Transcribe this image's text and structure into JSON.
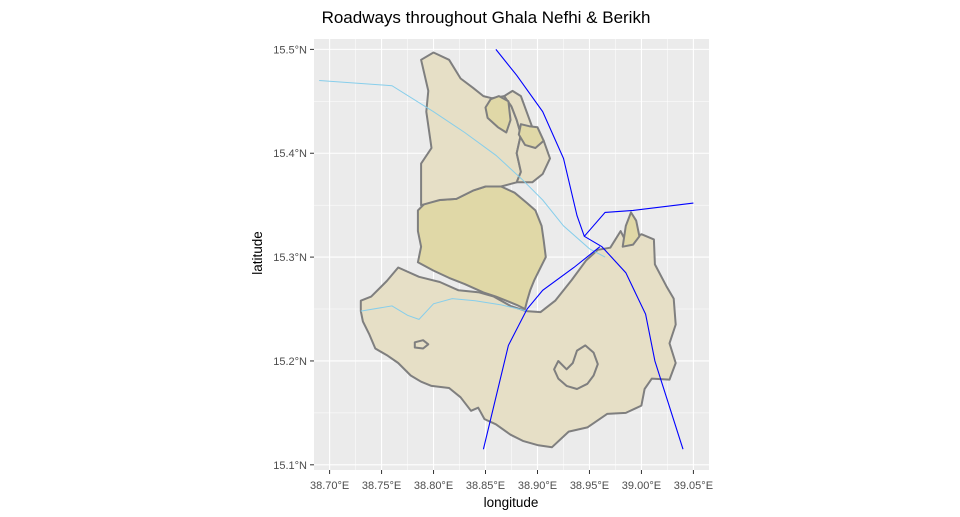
{
  "title": "Roadways throughout Ghala Nefhi & Berikh",
  "x_axis": {
    "label": "longitude",
    "ticks": [
      {
        "value": 38.7,
        "label": "38.70°E"
      },
      {
        "value": 38.75,
        "label": "38.75°E"
      },
      {
        "value": 38.8,
        "label": "38.80°E"
      },
      {
        "value": 38.85,
        "label": "38.85°E"
      },
      {
        "value": 38.9,
        "label": "38.90°E"
      },
      {
        "value": 38.95,
        "label": "38.95°E"
      },
      {
        "value": 39.0,
        "label": "39.00°E"
      },
      {
        "value": 39.05,
        "label": "39.05°E"
      }
    ]
  },
  "y_axis": {
    "label": "latitude",
    "ticks": [
      {
        "value": 15.1,
        "label": "15.1°N"
      },
      {
        "value": 15.2,
        "label": "15.2°N"
      },
      {
        "value": 15.3,
        "label": "15.3°N"
      },
      {
        "value": 15.4,
        "label": "15.4°N"
      },
      {
        "value": 15.5,
        "label": "15.5°N"
      }
    ]
  },
  "colors": {
    "panel": "#ebebeb",
    "grid": "#ffffff",
    "border": "#7f7f7f",
    "light_fill": "#e6dfc6",
    "dark_fill": "#e0d8a7",
    "road": "#0000ff",
    "river": "#87ceeb"
  },
  "map_data": {
    "extent": {
      "lon": [
        38.685,
        39.065
      ],
      "lat": [
        15.095,
        15.51
      ]
    },
    "regions": [
      {
        "name": "region-south-large",
        "fill": "light",
        "coords": [
          [
            38.73,
            15.248
          ],
          [
            38.73,
            15.258
          ],
          [
            38.74,
            15.262
          ],
          [
            38.755,
            15.277
          ],
          [
            38.766,
            15.29
          ],
          [
            38.786,
            15.281
          ],
          [
            38.806,
            15.276
          ],
          [
            38.824,
            15.268
          ],
          [
            38.844,
            15.266
          ],
          [
            38.858,
            15.262
          ],
          [
            38.874,
            15.253
          ],
          [
            38.889,
            15.248
          ],
          [
            38.903,
            15.247
          ],
          [
            38.917,
            15.258
          ],
          [
            38.933,
            15.278
          ],
          [
            38.947,
            15.297
          ],
          [
            38.958,
            15.307
          ],
          [
            38.97,
            15.309
          ],
          [
            38.98,
            15.325
          ],
          [
            38.986,
            15.313
          ],
          [
            39.0,
            15.322
          ],
          [
            39.012,
            15.317
          ],
          [
            39.013,
            15.293
          ],
          [
            39.024,
            15.272
          ],
          [
            39.031,
            15.26
          ],
          [
            39.033,
            15.235
          ],
          [
            39.027,
            15.217
          ],
          [
            39.033,
            15.198
          ],
          [
            39.027,
            15.182
          ],
          [
            39.01,
            15.183
          ],
          [
            39.003,
            15.173
          ],
          [
            39.0,
            15.157
          ],
          [
            38.985,
            15.15
          ],
          [
            38.967,
            15.149
          ],
          [
            38.948,
            15.136
          ],
          [
            38.93,
            15.132
          ],
          [
            38.914,
            15.117
          ],
          [
            38.9,
            15.119
          ],
          [
            38.886,
            15.123
          ],
          [
            38.874,
            15.129
          ],
          [
            38.86,
            15.139
          ],
          [
            38.849,
            15.144
          ],
          [
            38.843,
            15.155
          ],
          [
            38.836,
            15.152
          ],
          [
            38.826,
            15.165
          ],
          [
            38.815,
            15.174
          ],
          [
            38.798,
            15.176
          ],
          [
            38.788,
            15.18
          ],
          [
            38.778,
            15.186
          ],
          [
            38.766,
            15.198
          ],
          [
            38.756,
            15.205
          ],
          [
            38.744,
            15.212
          ],
          [
            38.738,
            15.226
          ],
          [
            38.732,
            15.238
          ]
        ]
      },
      {
        "name": "region-central-dark",
        "fill": "dark",
        "coords": [
          [
            38.785,
            15.295
          ],
          [
            38.8,
            15.287
          ],
          [
            38.815,
            15.28
          ],
          [
            38.83,
            15.274
          ],
          [
            38.848,
            15.266
          ],
          [
            38.86,
            15.262
          ],
          [
            38.87,
            15.258
          ],
          [
            38.88,
            15.254
          ],
          [
            38.888,
            15.25
          ],
          [
            38.89,
            15.258
          ],
          [
            38.893,
            15.268
          ],
          [
            38.897,
            15.278
          ],
          [
            38.904,
            15.292
          ],
          [
            38.908,
            15.3
          ],
          [
            38.906,
            15.316
          ],
          [
            38.904,
            15.33
          ],
          [
            38.898,
            15.345
          ],
          [
            38.89,
            15.352
          ],
          [
            38.878,
            15.362
          ],
          [
            38.865,
            15.368
          ],
          [
            38.85,
            15.368
          ],
          [
            38.838,
            15.364
          ],
          [
            38.822,
            15.356
          ],
          [
            38.806,
            15.355
          ],
          [
            38.792,
            15.352
          ],
          [
            38.785,
            15.345
          ],
          [
            38.785,
            15.325
          ],
          [
            38.788,
            15.31
          ]
        ]
      },
      {
        "name": "region-north-west",
        "fill": "light",
        "coords": [
          [
            38.788,
            15.35
          ],
          [
            38.788,
            15.39
          ],
          [
            38.798,
            15.405
          ],
          [
            38.793,
            15.44
          ],
          [
            38.795,
            15.46
          ],
          [
            38.788,
            15.49
          ],
          [
            38.8,
            15.497
          ],
          [
            38.815,
            15.49
          ],
          [
            38.826,
            15.472
          ],
          [
            38.838,
            15.463
          ],
          [
            38.848,
            15.455
          ],
          [
            38.856,
            15.453
          ],
          [
            38.868,
            15.455
          ],
          [
            38.875,
            15.445
          ],
          [
            38.88,
            15.432
          ],
          [
            38.884,
            15.418
          ],
          [
            38.88,
            15.4
          ],
          [
            38.884,
            15.382
          ],
          [
            38.88,
            15.372
          ],
          [
            38.865,
            15.368
          ],
          [
            38.85,
            15.368
          ],
          [
            38.838,
            15.364
          ],
          [
            38.822,
            15.356
          ],
          [
            38.806,
            15.355
          ]
        ]
      },
      {
        "name": "region-north-east",
        "fill": "light",
        "coords": [
          [
            38.88,
            15.372
          ],
          [
            38.884,
            15.382
          ],
          [
            38.88,
            15.4
          ],
          [
            38.884,
            15.418
          ],
          [
            38.88,
            15.432
          ],
          [
            38.875,
            15.445
          ],
          [
            38.868,
            15.455
          ],
          [
            38.876,
            15.46
          ],
          [
            38.884,
            15.455
          ],
          [
            38.895,
            15.425
          ],
          [
            38.906,
            15.412
          ],
          [
            38.912,
            15.395
          ],
          [
            38.905,
            15.38
          ],
          [
            38.895,
            15.372
          ]
        ]
      },
      {
        "name": "region-north-pocket-a",
        "fill": "dark",
        "coords": [
          [
            38.862,
            15.425
          ],
          [
            38.87,
            15.42
          ],
          [
            38.874,
            15.432
          ],
          [
            38.872,
            15.45
          ],
          [
            38.863,
            15.455
          ],
          [
            38.855,
            15.452
          ],
          [
            38.85,
            15.444
          ],
          [
            38.852,
            15.434
          ]
        ]
      },
      {
        "name": "region-north-pocket-b",
        "fill": "dark",
        "coords": [
          [
            38.884,
            15.428
          ],
          [
            38.892,
            15.426
          ],
          [
            38.9,
            15.425
          ],
          [
            38.906,
            15.412
          ],
          [
            38.898,
            15.405
          ],
          [
            38.888,
            15.408
          ],
          [
            38.882,
            15.418
          ]
        ]
      },
      {
        "name": "region-east-spike",
        "fill": "dark",
        "coords": [
          [
            38.982,
            15.31
          ],
          [
            38.985,
            15.33
          ],
          [
            38.99,
            15.343
          ],
          [
            38.995,
            15.335
          ],
          [
            38.998,
            15.32
          ],
          [
            38.992,
            15.312
          ]
        ]
      },
      {
        "name": "region-inner-hole",
        "fill": "light",
        "coords": [
          [
            38.92,
            15.2
          ],
          [
            38.928,
            15.192
          ],
          [
            38.934,
            15.198
          ],
          [
            38.938,
            15.21
          ],
          [
            38.946,
            15.215
          ],
          [
            38.954,
            15.208
          ],
          [
            38.958,
            15.197
          ],
          [
            38.954,
            15.186
          ],
          [
            38.948,
            15.178
          ],
          [
            38.938,
            15.173
          ],
          [
            38.928,
            15.176
          ],
          [
            38.92,
            15.183
          ],
          [
            38.916,
            15.192
          ]
        ]
      },
      {
        "name": "region-small-west-blob",
        "fill": "light",
        "coords": [
          [
            38.782,
            15.213
          ],
          [
            38.79,
            15.212
          ],
          [
            38.795,
            15.216
          ],
          [
            38.79,
            15.22
          ],
          [
            38.782,
            15.218
          ]
        ]
      }
    ],
    "roads": [
      {
        "name": "road-north-south",
        "coords": [
          [
            38.86,
            15.5
          ],
          [
            38.88,
            15.475
          ],
          [
            38.905,
            15.44
          ],
          [
            38.925,
            15.395
          ],
          [
            38.938,
            15.34
          ],
          [
            38.945,
            15.32
          ],
          [
            38.962,
            15.31
          ],
          [
            38.985,
            15.285
          ],
          [
            39.004,
            15.245
          ],
          [
            39.013,
            15.2
          ],
          [
            39.04,
            15.115
          ]
        ]
      },
      {
        "name": "road-east-spur",
        "coords": [
          [
            38.945,
            15.32
          ],
          [
            38.965,
            15.343
          ],
          [
            38.992,
            15.345
          ],
          [
            39.05,
            15.352
          ]
        ]
      },
      {
        "name": "road-southwest",
        "coords": [
          [
            38.96,
            15.31
          ],
          [
            38.935,
            15.29
          ],
          [
            38.905,
            15.268
          ],
          [
            38.89,
            15.25
          ],
          [
            38.872,
            15.215
          ],
          [
            38.848,
            15.115
          ]
        ]
      }
    ],
    "rivers": [
      {
        "name": "river-north",
        "coords": [
          [
            38.69,
            15.47
          ],
          [
            38.76,
            15.465
          ],
          [
            38.8,
            15.44
          ],
          [
            38.83,
            15.42
          ],
          [
            38.86,
            15.398
          ],
          [
            38.885,
            15.375
          ],
          [
            38.905,
            15.355
          ],
          [
            38.925,
            15.33
          ],
          [
            38.95,
            15.308
          ],
          [
            38.965,
            15.3
          ]
        ]
      },
      {
        "name": "river-south",
        "coords": [
          [
            38.73,
            15.248
          ],
          [
            38.76,
            15.253
          ],
          [
            38.775,
            15.244
          ],
          [
            38.786,
            15.24
          ],
          [
            38.8,
            15.255
          ],
          [
            38.818,
            15.26
          ],
          [
            38.84,
            15.258
          ],
          [
            38.865,
            15.254
          ],
          [
            38.89,
            15.248
          ]
        ]
      }
    ]
  }
}
